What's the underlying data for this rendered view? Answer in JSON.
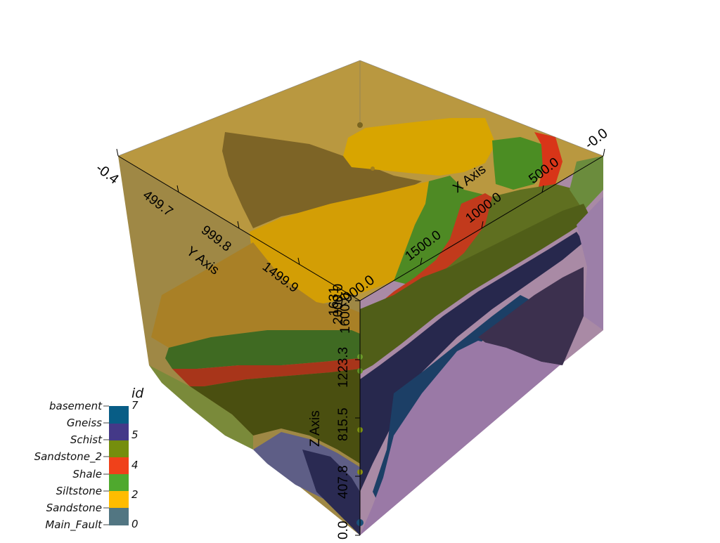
{
  "axes": {
    "x": {
      "title": "X Axis",
      "ticks": [
        {
          "v": "-0.0"
        },
        {
          "v": "500.0"
        },
        {
          "v": "1000.0"
        },
        {
          "v": "1500.0"
        },
        {
          "v": "2000.0"
        }
      ]
    },
    "y": {
      "title": "Y Axis",
      "ticks": [
        {
          "v": "-0.4"
        },
        {
          "v": "499.7"
        },
        {
          "v": "999.8"
        },
        {
          "v": "1499.9"
        },
        {
          "v": "2000.0"
        }
      ]
    },
    "z": {
      "title": "Z Axis",
      "ticks": [
        {
          "v": "0.0"
        },
        {
          "v": "407.8"
        },
        {
          "v": "815.5"
        },
        {
          "v": "1223.3"
        },
        {
          "v": "1600.0"
        },
        {
          "v": "1631"
        }
      ]
    }
  },
  "legend": {
    "title": "id",
    "entries": [
      {
        "label": "basement",
        "color": "#085d86"
      },
      {
        "label": "Gneiss",
        "color": "#443988"
      },
      {
        "label": "Schist",
        "color": "#758e0d"
      },
      {
        "label": "Sandstone_2",
        "color": "#758e0d"
      },
      {
        "label": "Shale",
        "color": "#f0411a"
      },
      {
        "label": "Siltstone",
        "color": "#4fa92e"
      },
      {
        "label": "Sandstone",
        "color": "#ffbc00"
      },
      {
        "label": "Main_Fault",
        "color": "#527682"
      }
    ],
    "swatches": [
      {
        "color": "#085d86"
      },
      {
        "color": "#443988"
      },
      {
        "color": "#758e0d"
      },
      {
        "color": "#758e0d"
      },
      {
        "color": "#f0411a"
      },
      {
        "color": "#4fa92e"
      },
      {
        "color": "#ffbc00"
      },
      {
        "color": "#527682"
      }
    ],
    "numbers": [
      {
        "v": "7"
      },
      {
        "v": "5"
      },
      {
        "v": "4"
      },
      {
        "v": "2"
      },
      {
        "v": "0"
      }
    ]
  }
}
